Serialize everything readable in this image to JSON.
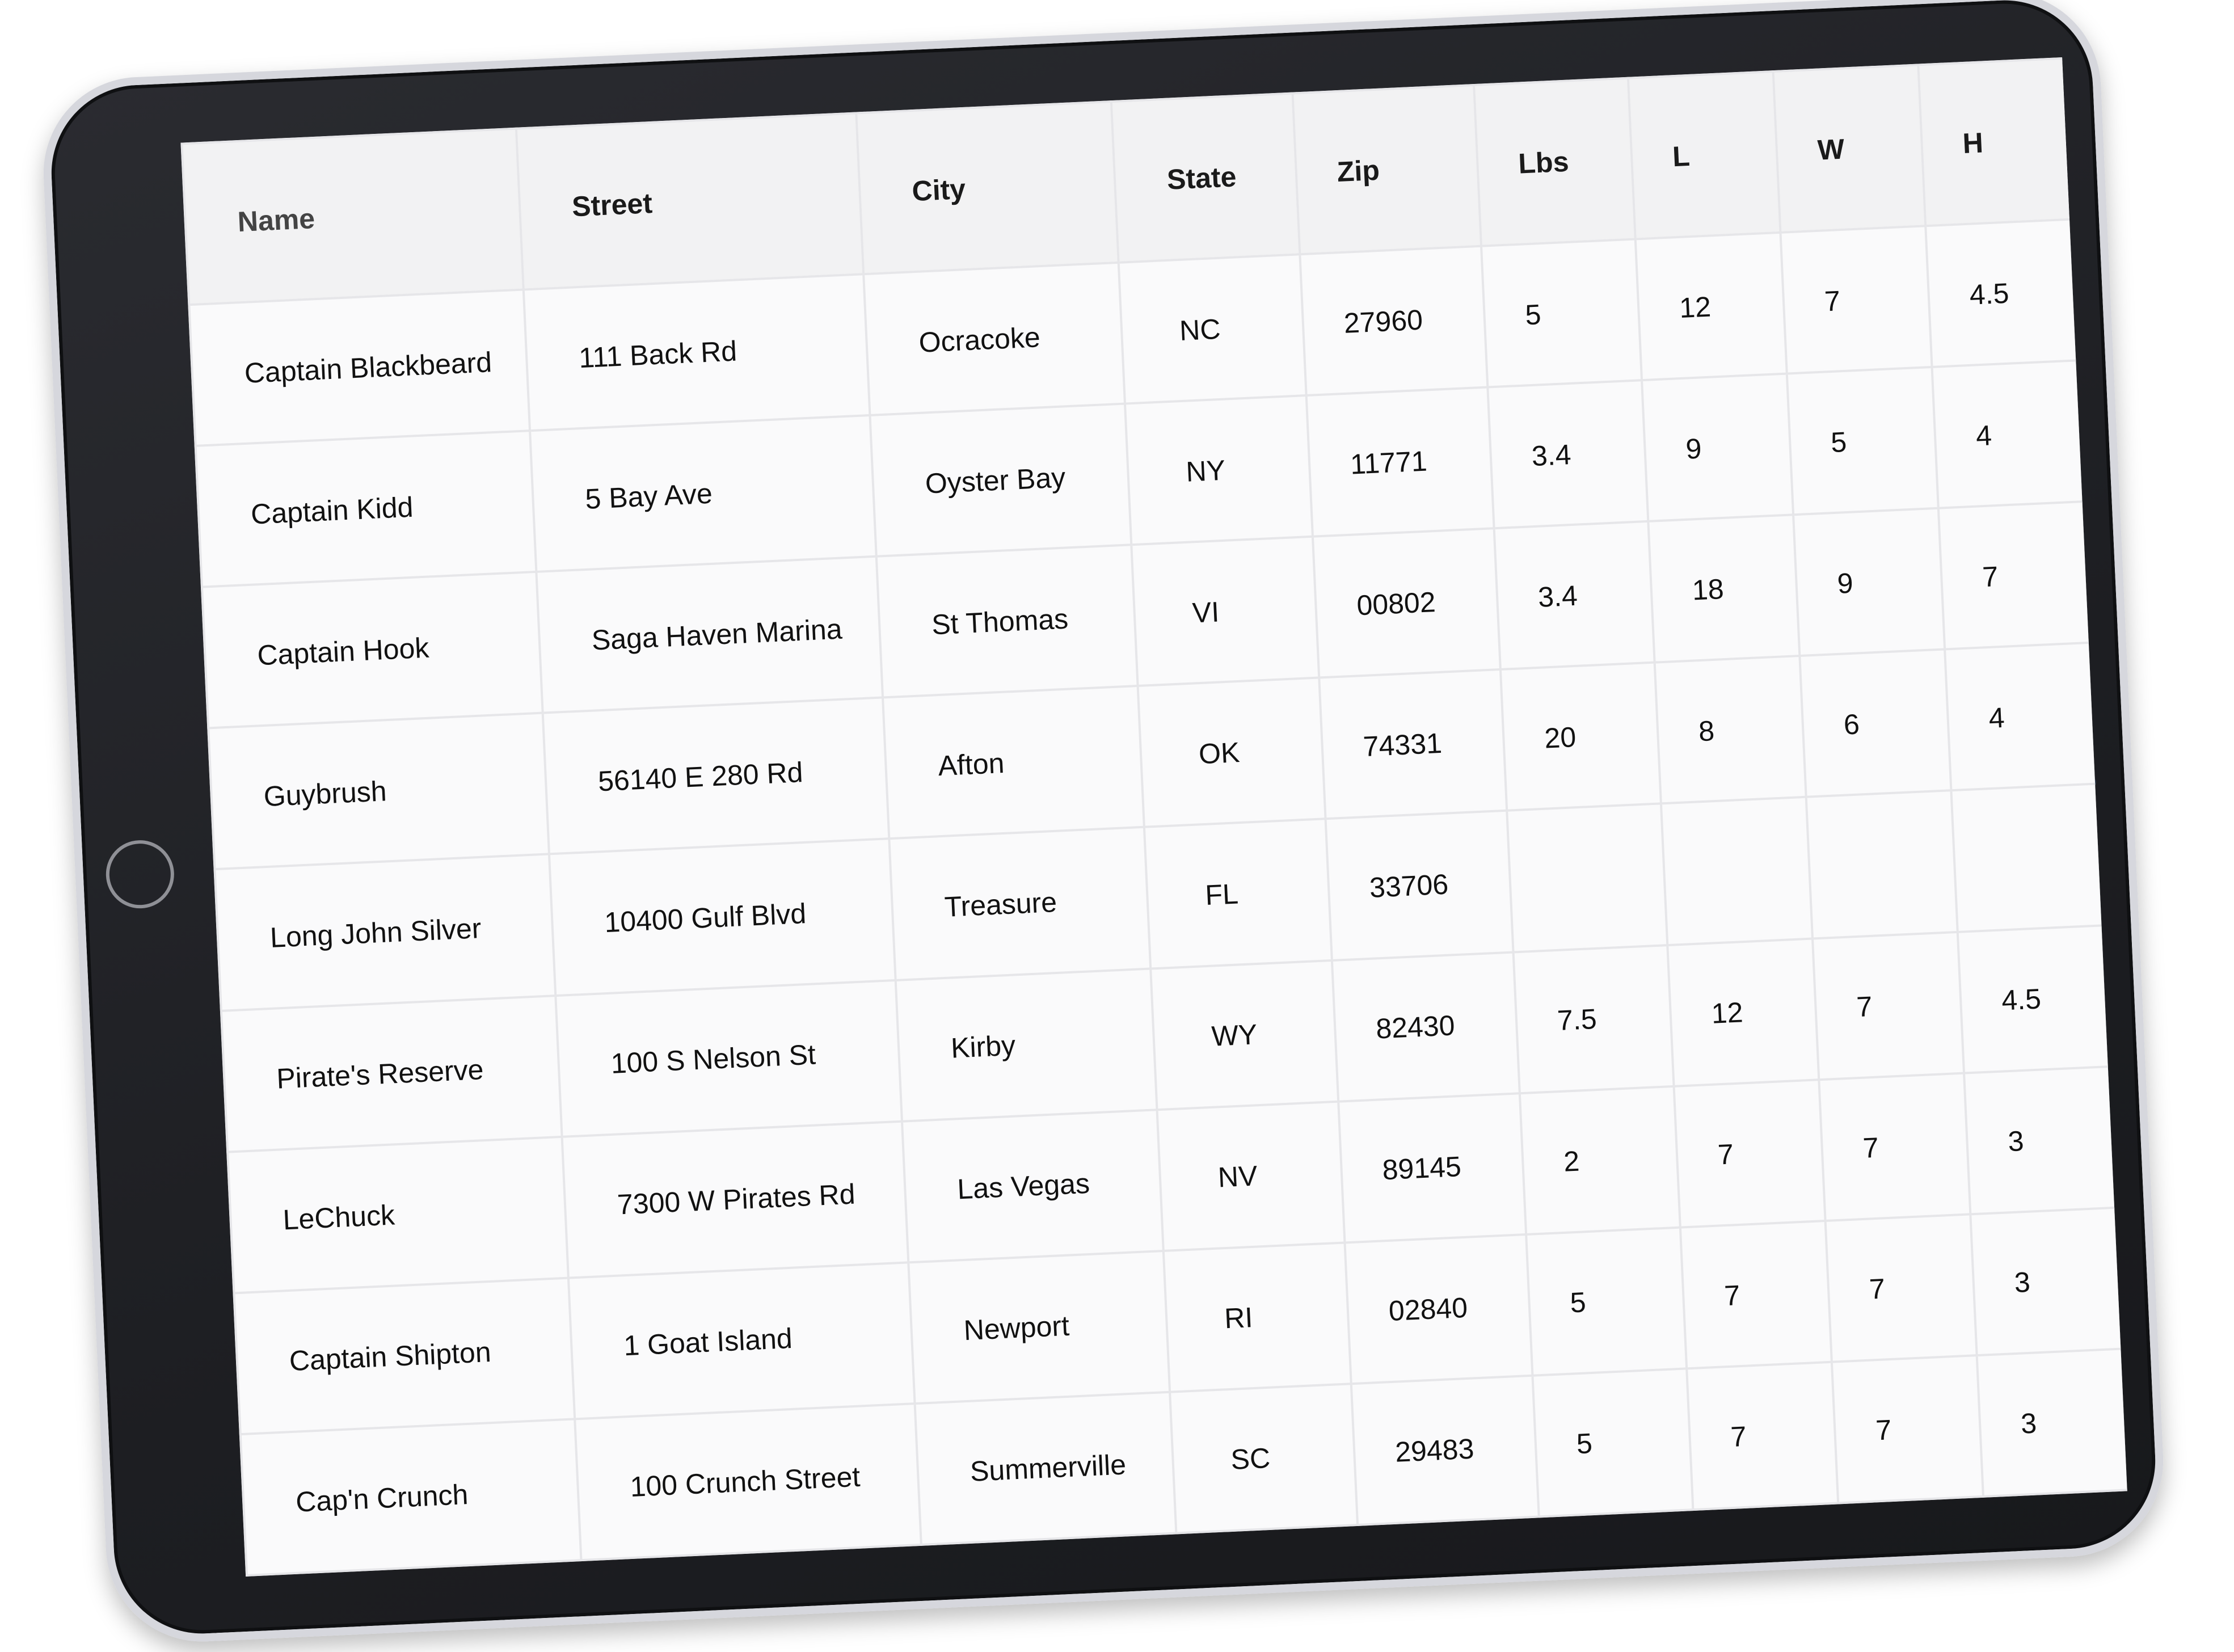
{
  "table": {
    "headers": [
      "Name",
      "Street",
      "City",
      "State",
      "Zip",
      "Lbs",
      "L",
      "W",
      "H"
    ],
    "rows": [
      [
        "Captain Blackbeard",
        "111 Back Rd",
        "Ocracoke",
        "NC",
        "27960",
        "5",
        "12",
        "7",
        "4.5"
      ],
      [
        "Captain Kidd",
        "5 Bay Ave",
        "Oyster Bay",
        "NY",
        "11771",
        "3.4",
        "9",
        "5",
        "4"
      ],
      [
        "Captain Hook",
        "Saga Haven Marina",
        "St Thomas",
        "VI",
        "00802",
        "3.4",
        "18",
        "9",
        "7"
      ],
      [
        "Guybrush",
        "56140 E 280 Rd",
        "Afton",
        "OK",
        "74331",
        "20",
        "8",
        "6",
        "4"
      ],
      [
        "Long John Silver",
        "10400 Gulf Blvd",
        "Treasure",
        "FL",
        "33706",
        "",
        "",
        "",
        ""
      ],
      [
        "Pirate's Reserve",
        "100 S Nelson St",
        "Kirby",
        "WY",
        "82430",
        "7.5",
        "12",
        "7",
        "4.5"
      ],
      [
        "LeChuck",
        "7300 W Pirates Rd",
        "Las Vegas",
        "NV",
        "89145",
        "2",
        "7",
        "7",
        "3"
      ],
      [
        "Captain Shipton",
        "1 Goat Island",
        "Newport",
        "RI",
        "02840",
        "5",
        "7",
        "7",
        "3"
      ],
      [
        "Cap'n Crunch",
        "100 Crunch Street",
        "Summerville",
        "SC",
        "29483",
        "5",
        "7",
        "7",
        "3"
      ]
    ]
  },
  "colors": {
    "bezel": "#1d1e22",
    "screen": "#fafafb",
    "header_bg": "#f2f2f3",
    "grid": "#e6e6e9"
  }
}
